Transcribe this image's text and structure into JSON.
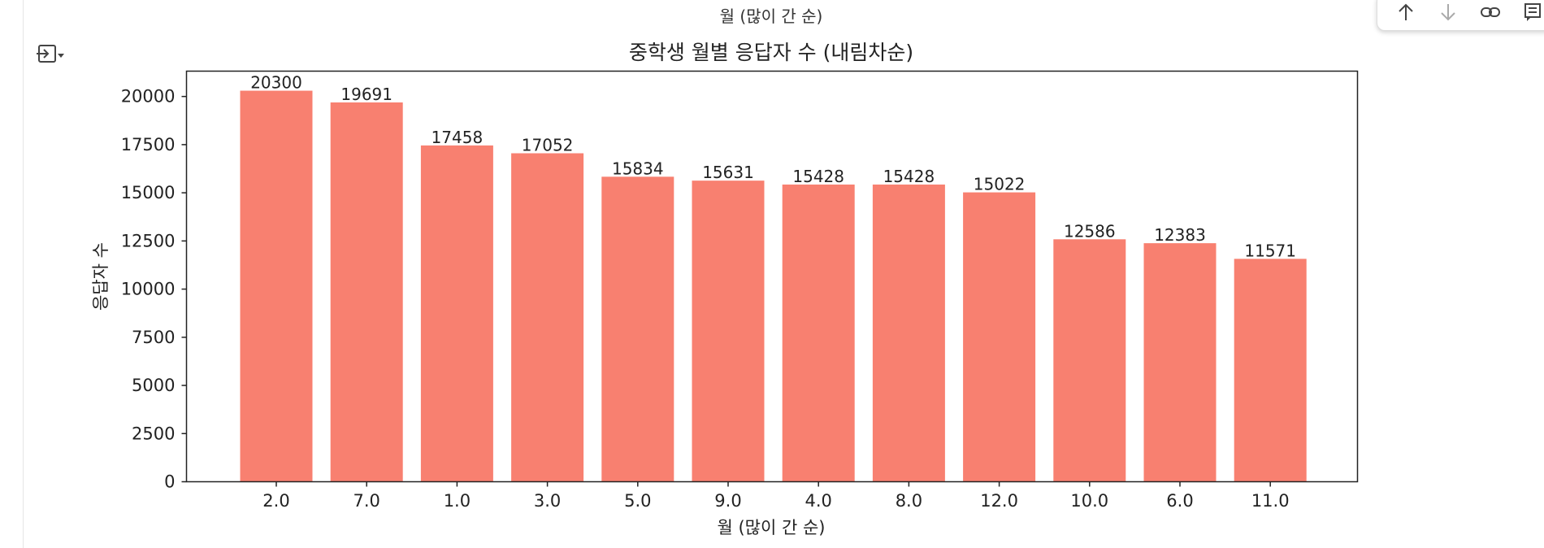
{
  "previous_output": {
    "xlabel": "월 (많이 간 순)"
  },
  "toolbar": {
    "items": [
      {
        "name": "move-up-icon",
        "glyph": "↑"
      },
      {
        "name": "move-down-icon",
        "glyph": "↓"
      },
      {
        "name": "link-icon",
        "glyph": "⊂⊃"
      },
      {
        "name": "comment-icon",
        "glyph": "▤"
      }
    ]
  },
  "output_icon": "output-options-icon",
  "chart_data": {
    "type": "bar",
    "title": "중학생 월별 응답자 수 (내림차순)",
    "xlabel": "월 (많이 간 순)",
    "ylabel": "응답자 수",
    "categories": [
      "2.0",
      "7.0",
      "1.0",
      "3.0",
      "5.0",
      "9.0",
      "4.0",
      "8.0",
      "12.0",
      "10.0",
      "6.0",
      "11.0"
    ],
    "values": [
      20300,
      19691,
      17458,
      17052,
      15834,
      15631,
      15428,
      15428,
      15022,
      12586,
      12383,
      11571
    ],
    "yticks": [
      0,
      2500,
      5000,
      7500,
      10000,
      12500,
      15000,
      17500,
      20000
    ],
    "ylim": [
      0,
      21315
    ],
    "bar_color": "#f88070",
    "grid": false
  }
}
